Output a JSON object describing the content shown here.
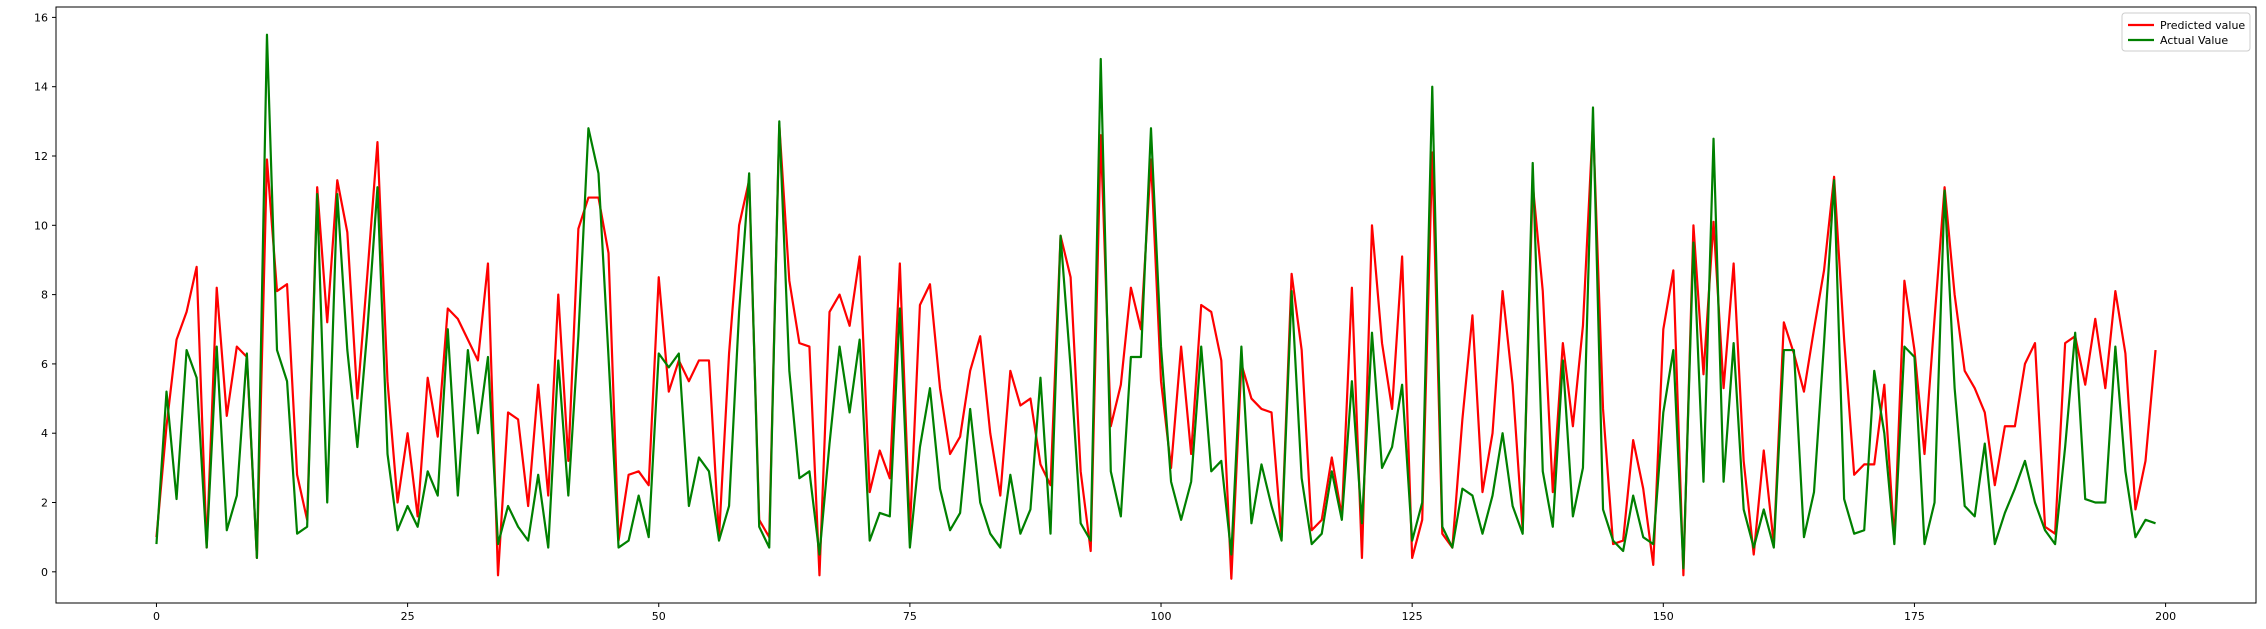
{
  "chart_data": {
    "type": "line",
    "title": "",
    "xlabel": "",
    "ylabel": "",
    "xlim": [
      -10,
      209
    ],
    "ylim": [
      -0.9,
      16.3
    ],
    "xticks": [
      0,
      25,
      50,
      75,
      100,
      125,
      150,
      175,
      200
    ],
    "yticks": [
      0,
      2,
      4,
      6,
      8,
      10,
      12,
      14,
      16
    ],
    "grid": false,
    "legend_position": "top-right",
    "series": [
      {
        "name": "Predicted value",
        "color": "#ff0000",
        "x_start": 0,
        "values": [
          1.0,
          4.2,
          6.7,
          7.5,
          8.8,
          0.7,
          8.2,
          4.5,
          6.5,
          6.2,
          0.4,
          11.9,
          8.1,
          8.3,
          2.8,
          1.5,
          11.1,
          7.2,
          11.3,
          9.8,
          5.0,
          8.6,
          12.4,
          5.5,
          2.0,
          4.0,
          1.6,
          5.6,
          3.9,
          7.6,
          7.3,
          6.7,
          6.1,
          8.9,
          -0.1,
          4.6,
          4.4,
          1.9,
          5.4,
          2.2,
          8.0,
          3.2,
          9.9,
          10.8,
          10.8,
          9.2,
          0.9,
          2.8,
          2.9,
          2.5,
          8.5,
          5.2,
          6.1,
          5.5,
          6.1,
          6.1,
          1.0,
          6.3,
          10.0,
          11.3,
          1.5,
          1.0,
          12.9,
          8.4,
          6.6,
          6.5,
          -0.1,
          7.5,
          8.0,
          7.1,
          9.1,
          2.3,
          3.5,
          2.7,
          8.9,
          1.2,
          7.7,
          8.3,
          5.3,
          3.4,
          3.9,
          5.8,
          6.8,
          4.0,
          2.2,
          5.8,
          4.8,
          5.0,
          3.1,
          2.5,
          9.7,
          8.5,
          2.9,
          0.6,
          12.6,
          4.2,
          5.4,
          8.2,
          7.0,
          11.9,
          5.5,
          3.0,
          6.5,
          3.4,
          7.7,
          7.5,
          6.1,
          -0.2,
          6.0,
          5.0,
          4.7,
          4.6,
          1.0,
          8.6,
          6.4,
          1.2,
          1.5,
          3.3,
          1.6,
          8.2,
          0.4,
          10.0,
          6.6,
          4.7,
          9.1,
          0.4,
          1.5,
          12.1,
          1.1,
          0.7,
          4.4,
          7.4,
          2.3,
          4.0,
          8.1,
          5.4,
          1.2,
          11.2,
          8.1,
          2.3,
          6.6,
          4.2,
          7.1,
          13.0,
          4.7,
          0.8,
          0.9,
          3.8,
          2.4,
          0.2,
          7.0,
          8.7,
          -0.1,
          10.0,
          5.7,
          10.1,
          5.3,
          8.9,
          3.2,
          0.5,
          3.5,
          0.8,
          7.2,
          6.3,
          5.2,
          7.0,
          8.7,
          11.4,
          6.7,
          2.8,
          3.1,
          3.1,
          5.4,
          0.9,
          8.4,
          6.4,
          3.4,
          7.3,
          11.1,
          8.0,
          5.8,
          5.3,
          4.6,
          2.5,
          4.2,
          4.2,
          6.0,
          6.6,
          1.3,
          1.1,
          6.6,
          6.8,
          5.4,
          7.3,
          5.3,
          8.1,
          6.3,
          1.8,
          3.2,
          6.4
        ]
      },
      {
        "name": "Actual Value",
        "color": "#008000",
        "x_start": 0,
        "values": [
          0.8,
          5.2,
          2.1,
          6.4,
          5.6,
          0.7,
          6.5,
          1.2,
          2.2,
          6.3,
          0.4,
          15.5,
          6.4,
          5.5,
          1.1,
          1.3,
          10.9,
          2.0,
          10.9,
          6.4,
          3.6,
          7.0,
          11.1,
          3.4,
          1.2,
          1.9,
          1.3,
          2.9,
          2.2,
          7.0,
          2.2,
          6.4,
          4.0,
          6.2,
          0.8,
          1.9,
          1.3,
          0.9,
          2.8,
          0.7,
          6.1,
          2.2,
          6.8,
          12.8,
          11.5,
          6.2,
          0.7,
          0.9,
          2.2,
          1.0,
          6.3,
          5.9,
          6.3,
          1.9,
          3.3,
          2.9,
          0.9,
          1.9,
          7.5,
          11.5,
          1.3,
          0.7,
          13.0,
          5.8,
          2.7,
          2.9,
          0.5,
          3.7,
          6.5,
          4.6,
          6.7,
          0.9,
          1.7,
          1.6,
          7.6,
          0.7,
          3.6,
          5.3,
          2.4,
          1.2,
          1.7,
          4.7,
          2.0,
          1.1,
          0.7,
          2.8,
          1.1,
          1.8,
          5.6,
          1.1,
          9.7,
          5.9,
          1.4,
          0.9,
          14.8,
          2.9,
          1.6,
          6.2,
          6.2,
          12.8,
          6.5,
          2.6,
          1.5,
          2.6,
          6.5,
          2.9,
          3.2,
          0.5,
          6.5,
          1.4,
          3.1,
          1.9,
          0.9,
          8.1,
          2.7,
          0.8,
          1.1,
          2.9,
          1.5,
          5.5,
          1.4,
          6.9,
          3.0,
          3.6,
          5.4,
          0.9,
          2.0,
          14.0,
          1.3,
          0.7,
          2.4,
          2.2,
          1.1,
          2.2,
          4.0,
          1.9,
          1.1,
          11.8,
          2.9,
          1.3,
          6.1,
          1.6,
          3.0,
          13.4,
          1.8,
          0.9,
          0.6,
          2.2,
          1.0,
          0.8,
          4.6,
          6.4,
          0.1,
          9.5,
          2.6,
          12.5,
          2.6,
          6.6,
          1.8,
          0.7,
          1.8,
          0.7,
          6.4,
          6.4,
          1.0,
          2.3,
          6.6,
          11.3,
          2.1,
          1.1,
          1.2,
          5.8,
          4.0,
          0.8,
          6.5,
          6.2,
          0.8,
          2.0,
          11.0,
          5.3,
          1.9,
          1.6,
          3.7,
          0.8,
          1.7,
          2.4,
          3.2,
          2.0,
          1.2,
          0.8,
          3.6,
          6.9,
          2.1,
          2.0,
          2.0,
          6.5,
          2.9,
          1.0,
          1.5,
          1.4
        ]
      }
    ]
  }
}
